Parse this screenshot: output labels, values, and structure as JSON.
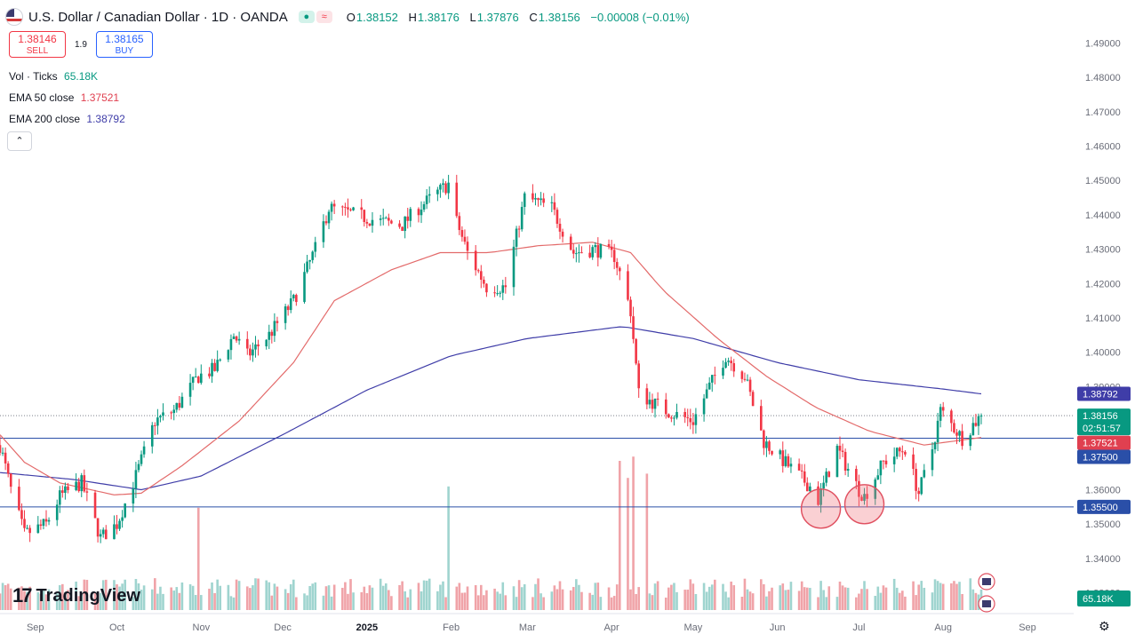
{
  "header": {
    "title": "U.S. Dollar / Canadian Dollar · 1D · OANDA",
    "o_label": "O",
    "o": "1.38152",
    "h_label": "H",
    "h": "1.38176",
    "l_label": "L",
    "l": "1.37876",
    "c_label": "C",
    "c": "1.38156",
    "change": "−0.00008 (−0.01%)"
  },
  "trade": {
    "sell_price": "1.38146",
    "sell_label": "SELL",
    "spread": "1.9",
    "buy_price": "1.38165",
    "buy_label": "BUY"
  },
  "indicators": {
    "vol_label": "Vol · Ticks",
    "vol_value": "65.18K",
    "ema50_label": "EMA 50 close",
    "ema50_value": "1.37521",
    "ema200_label": "EMA 200 close",
    "ema200_value": "1.38792"
  },
  "collapse_icon": "chevron-up-icon",
  "logo_text": "TradingView",
  "colors": {
    "up": "#089981",
    "down": "#f23645",
    "up_vol": "#9fd4cf",
    "down_vol": "#f0a3a8",
    "ema50": "#e36a6a",
    "ema200": "#3f3da8",
    "hline": "#2a4fa8",
    "circle": "#e05060"
  },
  "chart_data": {
    "type": "candlestick",
    "title": "U.S. Dollar / Canadian Dollar · 1D · OANDA",
    "ylim": [
      1.325,
      1.495
    ],
    "y_ticks": [
      "1.49000",
      "1.48000",
      "1.47000",
      "1.46000",
      "1.45000",
      "1.44000",
      "1.43000",
      "1.42000",
      "1.41000",
      "1.40000",
      "1.39000",
      "1.38000",
      "1.37000",
      "1.36000",
      "1.35000",
      "1.34000",
      "1.33000"
    ],
    "x_ticks": [
      {
        "label": "Sep",
        "date": "2024-09-01"
      },
      {
        "label": "Oct",
        "date": "2024-10-01"
      },
      {
        "label": "Nov",
        "date": "2024-11-01"
      },
      {
        "label": "Dec",
        "date": "2024-12-01"
      },
      {
        "label": "2025",
        "date": "2025-01-01"
      },
      {
        "label": "Feb",
        "date": "2025-02-01"
      },
      {
        "label": "Mar",
        "date": "2025-03-01"
      },
      {
        "label": "Apr",
        "date": "2025-04-01"
      },
      {
        "label": "May",
        "date": "2025-05-01"
      },
      {
        "label": "Jun",
        "date": "2025-06-01"
      },
      {
        "label": "Jul",
        "date": "2025-07-01"
      },
      {
        "label": "Aug",
        "date": "2025-08-01"
      },
      {
        "label": "Sep",
        "date": "2025-09-01"
      }
    ],
    "x_range": [
      "2024-08-19",
      "2025-09-18"
    ],
    "anchors": [
      {
        "date": "2024-08-19",
        "close": 1.373
      },
      {
        "date": "2024-08-23",
        "close": 1.36
      },
      {
        "date": "2024-08-28",
        "close": 1.347
      },
      {
        "date": "2024-09-05",
        "close": 1.35
      },
      {
        "date": "2024-09-10",
        "close": 1.358
      },
      {
        "date": "2024-09-18",
        "close": 1.362
      },
      {
        "date": "2024-09-25",
        "close": 1.346
      },
      {
        "date": "2024-10-01",
        "close": 1.35
      },
      {
        "date": "2024-10-08",
        "close": 1.364
      },
      {
        "date": "2024-10-15",
        "close": 1.38
      },
      {
        "date": "2024-10-22",
        "close": 1.383
      },
      {
        "date": "2024-10-31",
        "close": 1.393
      },
      {
        "date": "2024-11-06",
        "close": 1.395
      },
      {
        "date": "2024-11-13",
        "close": 1.405
      },
      {
        "date": "2024-11-18",
        "close": 1.399
      },
      {
        "date": "2024-11-26",
        "close": 1.405
      },
      {
        "date": "2024-12-05",
        "close": 1.415
      },
      {
        "date": "2024-12-13",
        "close": 1.43
      },
      {
        "date": "2024-12-18",
        "close": 1.442
      },
      {
        "date": "2025-01-06",
        "close": 1.438
      },
      {
        "date": "2025-01-14",
        "close": 1.437
      },
      {
        "date": "2025-01-20",
        "close": 1.442
      },
      {
        "date": "2025-01-31",
        "close": 1.449
      },
      {
        "date": "2025-02-03",
        "close": 1.438
      },
      {
        "date": "2025-02-07",
        "close": 1.429
      },
      {
        "date": "2025-02-14",
        "close": 1.419
      },
      {
        "date": "2025-02-21",
        "close": 1.419
      },
      {
        "date": "2025-02-28",
        "close": 1.445
      },
      {
        "date": "2025-03-10",
        "close": 1.442
      },
      {
        "date": "2025-03-18",
        "close": 1.429
      },
      {
        "date": "2025-03-26",
        "close": 1.43
      },
      {
        "date": "2025-04-02",
        "close": 1.428
      },
      {
        "date": "2025-04-04",
        "close": 1.423
      },
      {
        "date": "2025-04-08",
        "close": 1.412
      },
      {
        "date": "2025-04-11",
        "close": 1.388
      },
      {
        "date": "2025-04-21",
        "close": 1.383
      },
      {
        "date": "2025-05-01",
        "close": 1.38
      },
      {
        "date": "2025-05-07",
        "close": 1.39
      },
      {
        "date": "2025-05-13",
        "close": 1.399
      },
      {
        "date": "2025-05-20",
        "close": 1.393
      },
      {
        "date": "2025-05-27",
        "close": 1.374
      },
      {
        "date": "2025-06-05",
        "close": 1.367
      },
      {
        "date": "2025-06-13",
        "close": 1.361
      },
      {
        "date": "2025-06-16",
        "close": 1.357
      },
      {
        "date": "2025-06-23",
        "close": 1.372
      },
      {
        "date": "2025-07-01",
        "close": 1.36
      },
      {
        "date": "2025-07-03",
        "close": 1.358
      },
      {
        "date": "2025-07-10",
        "close": 1.368
      },
      {
        "date": "2025-07-18",
        "close": 1.372
      },
      {
        "date": "2025-07-23",
        "close": 1.359
      },
      {
        "date": "2025-07-28",
        "close": 1.372
      },
      {
        "date": "2025-07-31",
        "close": 1.383
      },
      {
        "date": "2025-08-05",
        "close": 1.378
      },
      {
        "date": "2025-08-08",
        "close": 1.375
      },
      {
        "date": "2025-08-12",
        "close": 1.379
      },
      {
        "date": "2025-08-15",
        "close": 1.3816
      }
    ],
    "ema50": [
      {
        "date": "2024-08-19",
        "value": 1.376
      },
      {
        "date": "2024-08-28",
        "value": 1.368
      },
      {
        "date": "2024-09-10",
        "value": 1.362
      },
      {
        "date": "2024-09-30",
        "value": 1.3585
      },
      {
        "date": "2024-10-10",
        "value": 1.359
      },
      {
        "date": "2024-10-25",
        "value": 1.367
      },
      {
        "date": "2024-11-15",
        "value": 1.38
      },
      {
        "date": "2024-12-05",
        "value": 1.397
      },
      {
        "date": "2024-12-20",
        "value": 1.415
      },
      {
        "date": "2025-01-10",
        "value": 1.424
      },
      {
        "date": "2025-01-28",
        "value": 1.429
      },
      {
        "date": "2025-02-15",
        "value": 1.429
      },
      {
        "date": "2025-03-05",
        "value": 1.431
      },
      {
        "date": "2025-03-25",
        "value": 1.432
      },
      {
        "date": "2025-04-08",
        "value": 1.429
      },
      {
        "date": "2025-04-20",
        "value": 1.418
      },
      {
        "date": "2025-05-10",
        "value": 1.404
      },
      {
        "date": "2025-05-28",
        "value": 1.393
      },
      {
        "date": "2025-06-15",
        "value": 1.384
      },
      {
        "date": "2025-07-05",
        "value": 1.377
      },
      {
        "date": "2025-07-25",
        "value": 1.373
      },
      {
        "date": "2025-08-15",
        "value": 1.3752
      }
    ],
    "ema200": [
      {
        "date": "2024-08-19",
        "value": 1.365
      },
      {
        "date": "2024-09-15",
        "value": 1.363
      },
      {
        "date": "2024-10-10",
        "value": 1.36
      },
      {
        "date": "2024-11-01",
        "value": 1.364
      },
      {
        "date": "2024-12-01",
        "value": 1.376
      },
      {
        "date": "2025-01-01",
        "value": 1.389
      },
      {
        "date": "2025-02-01",
        "value": 1.399
      },
      {
        "date": "2025-03-01",
        "value": 1.404
      },
      {
        "date": "2025-04-05",
        "value": 1.4075
      },
      {
        "date": "2025-05-01",
        "value": 1.404
      },
      {
        "date": "2025-06-01",
        "value": 1.397
      },
      {
        "date": "2025-07-01",
        "value": 1.392
      },
      {
        "date": "2025-08-01",
        "value": 1.3893
      },
      {
        "date": "2025-08-15",
        "value": 1.3879
      }
    ],
    "volume_spikes": [
      {
        "date": "2024-10-31",
        "value": 48
      },
      {
        "date": "2025-01-31",
        "value": 58
      },
      {
        "date": "2025-04-04",
        "value": 70
      },
      {
        "date": "2025-04-07",
        "value": 62
      },
      {
        "date": "2025-04-09",
        "value": 72
      },
      {
        "date": "2025-04-14",
        "value": 64
      }
    ],
    "horizontal_lines": [
      1.375,
      1.355
    ],
    "current_price": 1.38156,
    "price_labels": [
      {
        "value": 1.38792,
        "text": "1.38792",
        "color": "#3f3da8"
      },
      {
        "value": 1.38156,
        "text": "1.38156",
        "color": "#089981"
      },
      {
        "value": 1.37521,
        "text": "1.37521",
        "color": "#e04050"
      },
      {
        "value": 1.375,
        "text": "1.37500",
        "color": "#2a4fa8"
      },
      {
        "value": 1.355,
        "text": "1.35500",
        "color": "#2a4fa8"
      }
    ],
    "countdown": "02:51:57",
    "volume_label": "65.18K",
    "annotations": [
      {
        "date": "2025-06-17",
        "value": 1.3545,
        "shape": "circle"
      },
      {
        "date": "2025-07-03",
        "value": 1.3558,
        "shape": "circle"
      }
    ]
  }
}
